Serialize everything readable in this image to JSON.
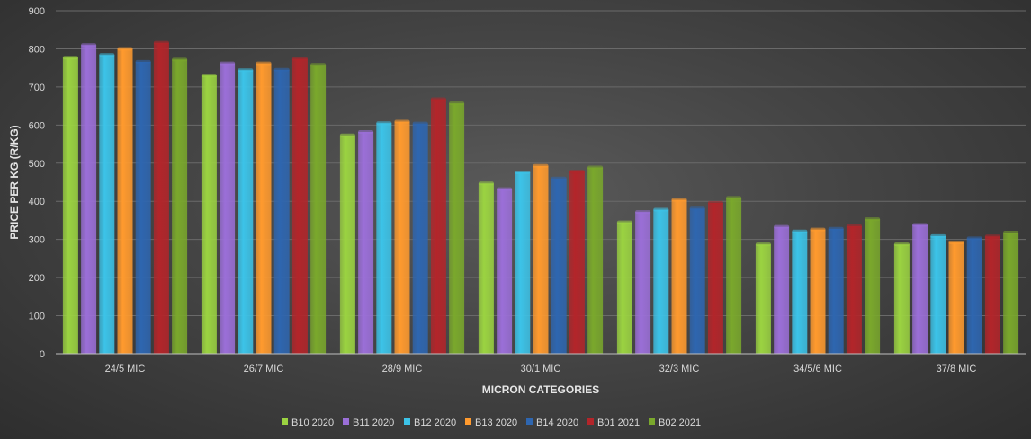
{
  "chart_data": {
    "type": "bar",
    "xlabel": "MICRON CATEGORIES",
    "ylabel": "PRICE PER KG (R/KG)",
    "ylim": [
      0,
      900
    ],
    "yticks": [
      0,
      100,
      200,
      300,
      400,
      500,
      600,
      700,
      800,
      900
    ],
    "categories": [
      "24/5 MIC",
      "26/7 MIC",
      "28/9 MIC",
      "30/1 MIC",
      "32/3 MIC",
      "34/5/6 MIC",
      "37/8 MIC"
    ],
    "series": [
      {
        "name": "B10 2020",
        "color": "#9bd341",
        "values": [
          777,
          730,
          573,
          447,
          345,
          287,
          287
        ]
      },
      {
        "name": "B11 2020",
        "color": "#9b6fd8",
        "values": [
          810,
          762,
          582,
          432,
          372,
          333,
          338
        ]
      },
      {
        "name": "B12 2020",
        "color": "#3cc3e8",
        "values": [
          784,
          744,
          605,
          476,
          378,
          321,
          309
        ]
      },
      {
        "name": "B13 2020",
        "color": "#ff9a2e",
        "values": [
          800,
          762,
          609,
          493,
          404,
          326,
          292
        ]
      },
      {
        "name": "B14 2020",
        "color": "#2e66b0",
        "values": [
          766,
          745,
          604,
          460,
          381,
          328,
          303
        ]
      },
      {
        "name": "B01 2021",
        "color": "#b3252a",
        "values": [
          816,
          774,
          668,
          478,
          396,
          335,
          308
        ]
      },
      {
        "name": "B02 2021",
        "color": "#7aa82c",
        "values": [
          772,
          758,
          657,
          489,
          409,
          353,
          318
        ]
      }
    ],
    "grid": true,
    "legend_position": "bottom"
  }
}
